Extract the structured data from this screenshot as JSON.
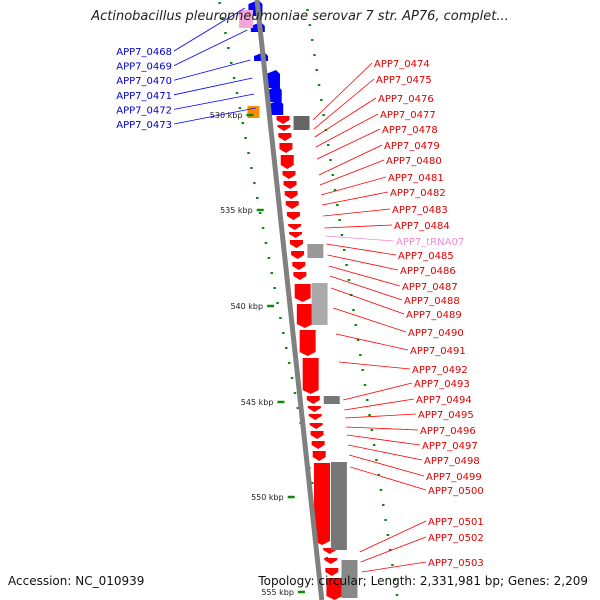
{
  "title": "Actinobacillus pleuropneumoniae serovar 7 str. AP76, complet...",
  "accession": "Accession: NC_010939",
  "topology": "Topology: circular; Length: 2,331,981 bp; Genes: 2,209",
  "colors": {
    "forward": "#ff0000",
    "reverse": "#0000ff",
    "trna": "#f5a6d8",
    "rrna": "#ff8c00",
    "backbone": "#808080",
    "tick": "#0a8a0a",
    "label_forward": "#dd0000",
    "label_reverse": "#0000cc",
    "label_trna": "#f08cd0"
  },
  "scale_labels": [
    "530 kbp",
    "535 kbp",
    "540 kbp",
    "545 kbp",
    "550 kbp",
    "555 kbp"
  ],
  "genes_reverse": [
    "APP7_0468",
    "APP7_0469",
    "APP7_0470",
    "APP7_0471",
    "APP7_0472",
    "APP7_0473"
  ],
  "genes_forward": [
    "APP7_0474",
    "APP7_0475",
    "APP7_0476",
    "APP7_0477",
    "APP7_0478",
    "APP7_0479",
    "APP7_0480",
    "APP7_0481",
    "APP7_0482",
    "APP7_0483",
    "APP7_0484",
    "APP7_tRNA07",
    "APP7_0485",
    "APP7_0486",
    "APP7_0487",
    "APP7_0488",
    "APP7_0489",
    "APP7_0490",
    "APP7_0491",
    "APP7_0492",
    "APP7_0493",
    "APP7_0494",
    "APP7_0495",
    "APP7_0496",
    "APP7_0497",
    "APP7_0498",
    "APP7_0499",
    "APP7_0500",
    "APP7_0501",
    "APP7_0502",
    "APP7_0503"
  ]
}
